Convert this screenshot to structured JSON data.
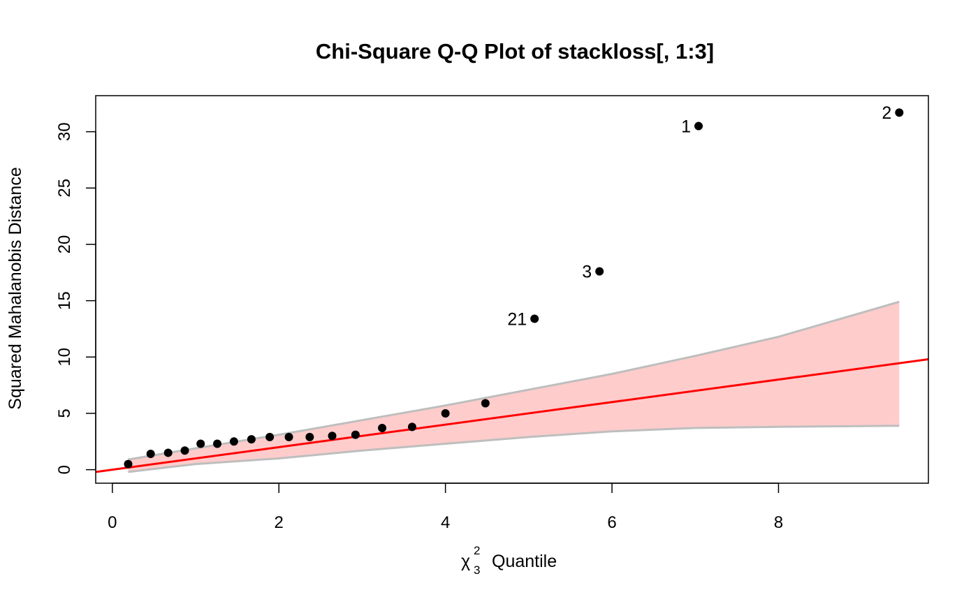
{
  "chart_data": {
    "type": "scatter",
    "title": "Chi-Square Q-Q Plot of stackloss[, 1:3]",
    "xlabel": {
      "symbol": "χ",
      "subscript": "3",
      "superscript": "2",
      "text": "Quantile"
    },
    "ylabel": "Squared Mahalanobis Distance",
    "xlim": [
      -0.2,
      9.8
    ],
    "ylim": [
      -1.2,
      33.2
    ],
    "x_ticks": [
      0,
      2,
      4,
      6,
      8
    ],
    "y_ticks": [
      0,
      5,
      10,
      15,
      20,
      25,
      30
    ],
    "grid": false,
    "colors": {
      "points": "#000000",
      "reference_line": "#ff0000",
      "band_fill": "#ffcccc",
      "band_edge": "#bebebe",
      "frame": "#000000"
    },
    "points": [
      {
        "x": 0.19,
        "y": 0.5
      },
      {
        "x": 0.46,
        "y": 1.4
      },
      {
        "x": 0.67,
        "y": 1.5
      },
      {
        "x": 0.87,
        "y": 1.7
      },
      {
        "x": 1.06,
        "y": 2.3
      },
      {
        "x": 1.26,
        "y": 2.3
      },
      {
        "x": 1.46,
        "y": 2.5
      },
      {
        "x": 1.67,
        "y": 2.7
      },
      {
        "x": 1.89,
        "y": 2.9
      },
      {
        "x": 2.12,
        "y": 2.9
      },
      {
        "x": 2.37,
        "y": 2.9
      },
      {
        "x": 2.64,
        "y": 3.0
      },
      {
        "x": 2.92,
        "y": 3.1
      },
      {
        "x": 3.24,
        "y": 3.7
      },
      {
        "x": 3.6,
        "y": 3.8
      },
      {
        "x": 4.0,
        "y": 5.0
      },
      {
        "x": 4.48,
        "y": 5.9
      },
      {
        "x": 5.07,
        "y": 13.4,
        "label": "21"
      },
      {
        "x": 5.85,
        "y": 17.6,
        "label": "3"
      },
      {
        "x": 7.04,
        "y": 30.5,
        "label": "1"
      },
      {
        "x": 9.45,
        "y": 31.7,
        "label": "2"
      }
    ],
    "reference_line": {
      "intercept": 0,
      "slope": 1
    },
    "band": {
      "x": [
        0.19,
        1.0,
        2.0,
        3.0,
        4.0,
        5.0,
        6.0,
        7.0,
        8.0,
        9.45
      ],
      "upper": [
        0.9,
        1.9,
        3.1,
        4.4,
        5.7,
        7.1,
        8.5,
        10.1,
        11.8,
        14.9
      ],
      "lower": [
        -0.2,
        0.5,
        1.0,
        1.7,
        2.3,
        2.9,
        3.4,
        3.7,
        3.8,
        3.9
      ]
    }
  }
}
